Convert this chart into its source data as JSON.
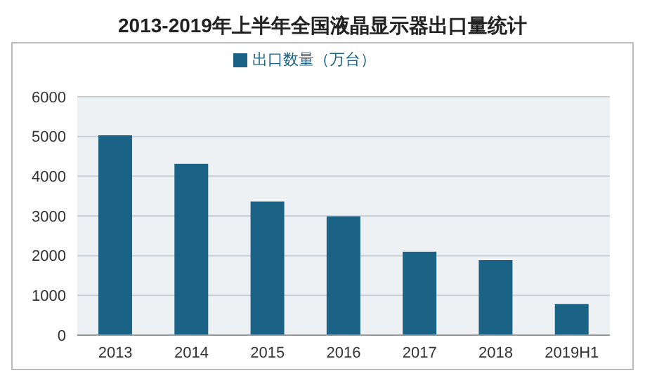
{
  "chart_data": {
    "type": "bar",
    "title": "2013-2019年上半年全国液晶显示器出口量统计",
    "categories": [
      "2013",
      "2014",
      "2015",
      "2016",
      "2017",
      "2018",
      "2019H1"
    ],
    "series": [
      {
        "name": "出口数量（万台）",
        "color": "#1b6386",
        "values": [
          5030,
          4310,
          3360,
          2990,
          2100,
          1890,
          780
        ]
      }
    ],
    "ylim": [
      0,
      6000
    ],
    "yticks": [
      0,
      1000,
      2000,
      3000,
      4000,
      5000,
      6000
    ],
    "grid": "y",
    "legend": "top"
  }
}
